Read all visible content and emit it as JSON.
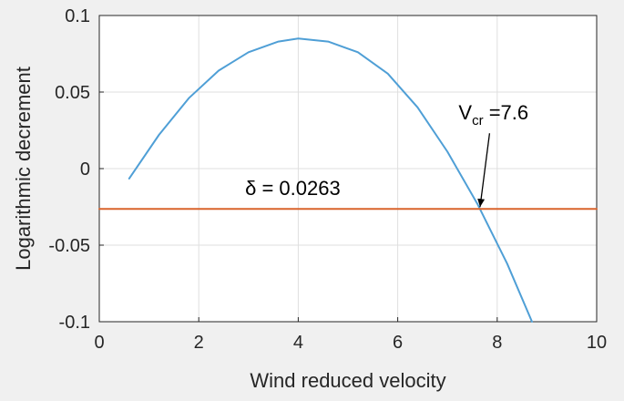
{
  "chart_data": {
    "type": "line",
    "xlabel": "Wind reduced velocity",
    "ylabel": "Logarithmic decrement",
    "xlim": [
      0,
      10
    ],
    "ylim": [
      -0.1,
      0.1
    ],
    "x_ticks": [
      0,
      2,
      4,
      6,
      8,
      10
    ],
    "x_tick_labels": [
      "0",
      "2",
      "4",
      "6",
      "8",
      "10"
    ],
    "y_ticks": [
      0.1,
      0.05,
      0,
      -0.05,
      -0.1
    ],
    "y_tick_labels": [
      "0.1",
      "0.05",
      "0",
      "-0.05",
      "-0.1"
    ],
    "grid": true,
    "series": [
      {
        "color": "#4f9fd6",
        "x": [
          0.6,
          1.2,
          1.8,
          2.4,
          3.0,
          3.6,
          4.0,
          4.6,
          5.2,
          5.8,
          6.4,
          7.0,
          7.6,
          8.2,
          8.7
        ],
        "y": [
          -0.0065,
          0.022,
          0.046,
          0.064,
          0.076,
          0.083,
          0.085,
          0.083,
          0.076,
          0.062,
          0.04,
          0.011,
          -0.023,
          -0.062,
          -0.1
        ]
      },
      {
        "color": "#d9632b",
        "x": [
          0,
          10
        ],
        "y": [
          -0.0263,
          -0.0263
        ]
      }
    ],
    "annotations": [
      {
        "id": "delta",
        "text": "δ = 0.0263",
        "x": 4.0,
        "y": -0.0125
      },
      {
        "id": "vcr",
        "main": "V",
        "sub": "cr",
        "rest": " =7.6",
        "x": 7.7,
        "y": 0.0195,
        "arrow_to": [
          7.6,
          -0.0263
        ]
      }
    ]
  }
}
